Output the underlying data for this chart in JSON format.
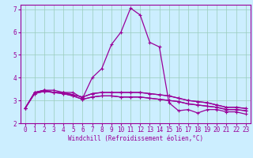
{
  "xlabel": "Windchill (Refroidissement éolien,°C)",
  "bg_color": "#cceeff",
  "grid_color": "#99ccbb",
  "line_color": "#990099",
  "xlim": [
    -0.5,
    23.5
  ],
  "ylim": [
    2,
    7.2
  ],
  "yticks": [
    2,
    3,
    4,
    5,
    6,
    7
  ],
  "xticks": [
    0,
    1,
    2,
    3,
    4,
    5,
    6,
    7,
    8,
    9,
    10,
    11,
    12,
    13,
    14,
    15,
    16,
    17,
    18,
    19,
    20,
    21,
    22,
    23
  ],
  "series": [
    [
      2.65,
      3.35,
      3.45,
      3.45,
      3.35,
      3.35,
      3.1,
      4.0,
      4.4,
      5.45,
      6.0,
      7.05,
      6.75,
      5.55,
      5.35,
      2.9,
      2.55,
      2.6,
      2.45,
      2.6,
      2.6,
      2.5,
      2.5,
      2.4
    ],
    [
      2.65,
      3.35,
      3.45,
      3.35,
      3.35,
      3.25,
      3.15,
      3.3,
      3.35,
      3.35,
      3.35,
      3.35,
      3.35,
      3.3,
      3.25,
      3.2,
      3.1,
      3.0,
      2.95,
      2.9,
      2.8,
      2.7,
      2.7,
      2.65
    ],
    [
      2.65,
      3.35,
      3.45,
      3.35,
      3.35,
      3.25,
      3.15,
      3.3,
      3.35,
      3.35,
      3.35,
      3.35,
      3.35,
      3.3,
      3.25,
      3.2,
      3.1,
      3.0,
      2.95,
      2.9,
      2.8,
      2.7,
      2.7,
      2.65
    ],
    [
      2.65,
      3.3,
      3.4,
      3.35,
      3.3,
      3.2,
      3.05,
      3.15,
      3.2,
      3.2,
      3.15,
      3.15,
      3.15,
      3.1,
      3.05,
      3.0,
      2.95,
      2.85,
      2.8,
      2.75,
      2.7,
      2.6,
      2.6,
      2.55
    ],
    [
      2.65,
      3.3,
      3.4,
      3.35,
      3.3,
      3.2,
      3.05,
      3.15,
      3.2,
      3.2,
      3.15,
      3.15,
      3.15,
      3.1,
      3.05,
      3.0,
      2.95,
      2.85,
      2.8,
      2.75,
      2.7,
      2.6,
      2.6,
      2.55
    ]
  ],
  "label_fontsize": 5.5,
  "xlabel_fontsize": 5.5,
  "tick_labelsize": 5.5
}
